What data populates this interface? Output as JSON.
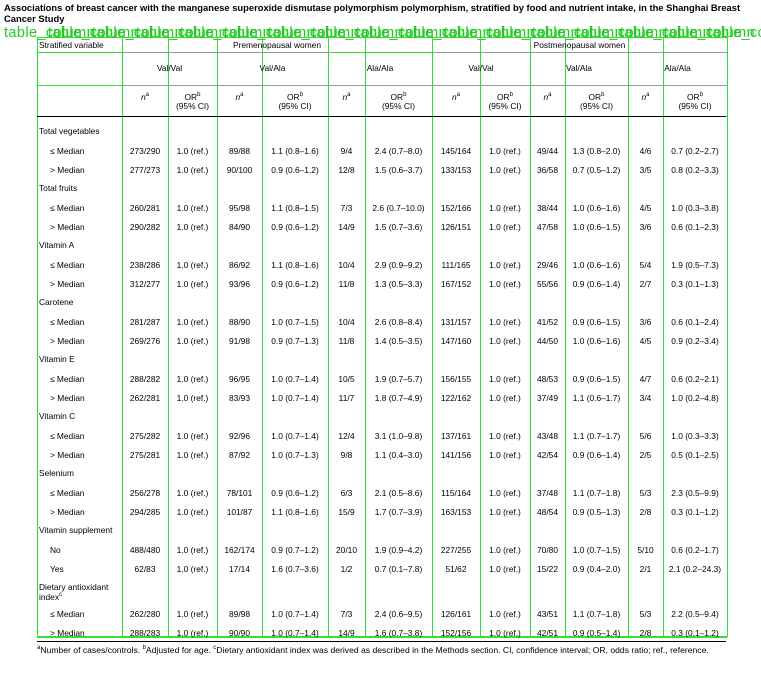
{
  "title": "Associations of breast cancer with the manganese superoxide dismutase polymorphism polymorphism, stratified by food and nutrient intake, in the Shanghai Breast Cancer Study",
  "overlay_labels": [
    "table_column",
    "table_column",
    "table_column",
    "table_column",
    "table_column",
    "table_column",
    "table_column",
    "table_column",
    "table_column",
    "table_column",
    "table_column",
    "table_column",
    "table_column",
    "table_column",
    "table_column",
    "table_column",
    "table_column"
  ],
  "header": {
    "stratified": "Stratified variable",
    "pre": "Premenopausal women",
    "post": "Postmenopausal women",
    "genotypes": [
      "Val/Val",
      "Val/Ala",
      "Ala/Ala",
      "Val/Val",
      "Val/Ala",
      "Ala/Ala"
    ],
    "n": "n",
    "n_sup": "a",
    "or": "OR",
    "or_sup": "b",
    "ci": "(95% CI)"
  },
  "rows": [
    {
      "type": "group",
      "label": "Total vegetables"
    },
    {
      "type": "data",
      "label": "≤ Median",
      "v": [
        "273/290",
        "1.0 (ref.)",
        "89/88",
        "1.1 (0.8–1.6)",
        "9/4",
        "2.4 (0.7–8.0)",
        "145/164",
        "1.0 (ref.)",
        "49/44",
        "1.3 (0.8–2.0)",
        "4/6",
        "0.7 (0.2–2.7)"
      ]
    },
    {
      "type": "data",
      "label": "> Median",
      "v": [
        "277/273",
        "1.0 (ref.)",
        "90/100",
        "0.9 (0.6–1.2)",
        "12/8",
        "1.5 (0.6–3.7)",
        "133/153",
        "1.0 (ref.)",
        "36/58",
        "0.7 (0.5–1.2)",
        "3/5",
        "0.8 (0.2–3.3)"
      ]
    },
    {
      "type": "group",
      "label": "Total fruits"
    },
    {
      "type": "data",
      "label": "≤ Median",
      "v": [
        "260/281",
        "1.0 (ref.)",
        "95/98",
        "1.1 (0.8–1.5)",
        "7/3",
        "2.6 (0.7–10.0)",
        "152/166",
        "1.0 (ref.)",
        "38/44",
        "1.0 (0.6–1.6)",
        "4/5",
        "1.0 (0.3–3.8)"
      ]
    },
    {
      "type": "data",
      "label": "> Median",
      "v": [
        "290/282",
        "1.0 (ref.)",
        "84/90",
        "0.9 (0.6–1.2)",
        "14/9",
        "1.5 (0.7–3.6)",
        "126/151",
        "1.0 (ref.)",
        "47/58",
        "1.0 (0.6–1.5)",
        "3/6",
        "0.6 (0.1–2.3)"
      ]
    },
    {
      "type": "group",
      "label": "Vitamin A"
    },
    {
      "type": "data",
      "label": "≤ Median",
      "v": [
        "238/286",
        "1.0 (ref.)",
        "86/92",
        "1.1 (0.8–1.6)",
        "10/4",
        "2.9 (0.9–9.2)",
        "111/165",
        "1.0 (ref.)",
        "29/46",
        "1.0 (0.6–1.6)",
        "5/4",
        "1.9 (0.5–7.3)"
      ]
    },
    {
      "type": "data",
      "label": "> Median",
      "v": [
        "312/277",
        "1.0 (ref.)",
        "93/96",
        "0.9 (0.6–1.2)",
        "11/8",
        "1.3 (0.5–3.3)",
        "167/152",
        "1.0 (ref.)",
        "55/56",
        "0.9 (0.6–1.4)",
        "2/7",
        "0.3 (0.1–1.3)"
      ]
    },
    {
      "type": "group",
      "label": "Carotene"
    },
    {
      "type": "data",
      "label": "≤ Median",
      "v": [
        "281/287",
        "1.0 (ref.)",
        "88/90",
        "1.0 (0.7–1.5)",
        "10/4",
        "2.6 (0.8–8.4)",
        "131/157",
        "1.0 (ref.)",
        "41/52",
        "0.9 (0.6–1.5)",
        "3/6",
        "0.6 (0.1–2.4)"
      ]
    },
    {
      "type": "data",
      "label": "> Median",
      "v": [
        "269/276",
        "1.0 (ref.)",
        "91/98",
        "0.9 (0.7–1.3)",
        "11/8",
        "1.4 (0.5–3.5)",
        "147/160",
        "1.0 (ref.)",
        "44/50",
        "1.0 (0.6–1.6)",
        "4/5",
        "0.9 (0.2–3.4)"
      ]
    },
    {
      "type": "group",
      "label": "Vitamin E"
    },
    {
      "type": "data",
      "label": "≤ Median",
      "v": [
        "288/282",
        "1.0 (ref.)",
        "96/95",
        "1.0 (0.7–1.4)",
        "10/5",
        "1.9 (0.7–5.7)",
        "156/155",
        "1.0 (ref.)",
        "48/53",
        "0.9 (0.6–1.5)",
        "4/7",
        "0.6 (0.2–2.1)"
      ]
    },
    {
      "type": "data",
      "label": "> Median",
      "v": [
        "262/281",
        "1.0 (ref.)",
        "83/93",
        "1.0 (0.7–1.4)",
        "11/7",
        "1.8 (0.7–4.9)",
        "122/162",
        "1.0 (ref.)",
        "37/49",
        "1.1 (0.6–1.7)",
        "3/4",
        "1.0 (0.2–4.8)"
      ]
    },
    {
      "type": "group",
      "label": "Vitamin C"
    },
    {
      "type": "data",
      "label": "≤ Median",
      "v": [
        "275/282",
        "1.0 (ref.)",
        "92/96",
        "1.0 (0.7–1.4)",
        "12/4",
        "3.1 (1.0–9.8)",
        "137/161",
        "1.0 (ref.)",
        "43/48",
        "1.1 (0.7–1.7)",
        "5/6",
        "1.0 (0.3–3.3)"
      ]
    },
    {
      "type": "data",
      "label": "> Median",
      "v": [
        "275/281",
        "1.0 (ref.)",
        "87/92",
        "1.0 (0.7–1.3)",
        "9/8",
        "1.1 (0.4–3.0)",
        "141/156",
        "1.0 (ref.)",
        "42/54",
        "0.9 (0.6–1.4)",
        "2/5",
        "0.5 (0.1–2.5)"
      ]
    },
    {
      "type": "group",
      "label": "Selenium"
    },
    {
      "type": "data",
      "label": "≤ Median",
      "v": [
        "256/278",
        "1.0 (ref.)",
        "78/101",
        "0.9 (0.6–1.2)",
        "6/3",
        "2.1 (0.5–8.6)",
        "115/164",
        "1.0 (ref.)",
        "37/48",
        "1.1 (0.7–1.8)",
        "5/3",
        "2.3 (0.5–9.9)"
      ]
    },
    {
      "type": "data",
      "label": "> Median",
      "v": [
        "294/285",
        "1.0 (ref.)",
        "101/87",
        "1.1 (0.8–1.6)",
        "15/9",
        "1.7 (0.7–3.9)",
        "163/153",
        "1.0 (ref.)",
        "48/54",
        "0.9 (0.5–1.3)",
        "2/8",
        "0.3 (0.1–1.2)"
      ]
    },
    {
      "type": "group",
      "label": "Vitamin supplement"
    },
    {
      "type": "data",
      "label": "No",
      "v": [
        "488/480",
        "1.0 (ref.)",
        "162/174",
        "0.9 (0.7–1.2)",
        "20/10",
        "1.9 (0.9–4.2)",
        "227/255",
        "1.0 (ref.)",
        "70/80",
        "1.0 (0.7–1.5)",
        "5/10",
        "0.6 (0.2–1.7)"
      ]
    },
    {
      "type": "data",
      "label": "Yes",
      "v": [
        "62/83",
        "1.0 (ref.)",
        "17/14",
        "1.6 (0.7–3.6)",
        "1/2",
        "0.7 (0.1–7.8)",
        "51/62",
        "1.0 (ref.)",
        "15/22",
        "0.9 (0.4–2.0)",
        "2/1",
        "2.1 (0.2–24.3)"
      ]
    },
    {
      "type": "group",
      "label": "Dietary antioxidant index",
      "sup": "c"
    },
    {
      "type": "data",
      "label": "≤ Median",
      "v": [
        "262/280",
        "1.0 (ref.)",
        "89/98",
        "1.0 (0.7–1.4)",
        "7/3",
        "2.4 (0.6–9.5)",
        "126/161",
        "1.0 (ref.)",
        "43/51",
        "1.1 (0.7–1.8)",
        "5/3",
        "2.2 (0.5–9.4)"
      ]
    },
    {
      "type": "data",
      "label": "> Median",
      "v": [
        "288/283",
        "1.0 (ref.)",
        "90/90",
        "1.0 (0.7–1.4)",
        "14/9",
        "1.6 (0.7–3.8)",
        "152/156",
        "1.0 (ref.)",
        "42/51",
        "0.9 (0.5–1.4)",
        "2/8",
        "0.3 (0.1–1.2)"
      ]
    }
  ],
  "footnote": {
    "a_sup": "a",
    "a": "Number of cases/controls. ",
    "b_sup": "b",
    "b": "Adjusted for age. ",
    "c_sup": "c",
    "c": "Dietary antioxidant index was derived as described in the Methods section. CI, confidence interval; OR, odds ratio; ref., reference."
  }
}
